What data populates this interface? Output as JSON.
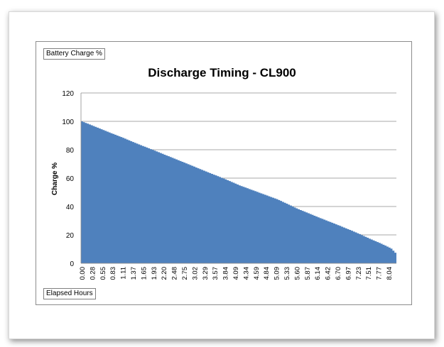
{
  "chart_data": {
    "type": "area",
    "title": "Discharge Timing - CL900",
    "ylabel": "Charge %",
    "y_axis_tag": "Battery Charge %",
    "x_axis_tag": "Elapsed Hours",
    "ylim": [
      0,
      120
    ],
    "y_ticks": [
      0,
      20,
      40,
      60,
      80,
      100,
      120
    ],
    "grid": true,
    "color": "#4f81bd",
    "x_tick_labels": [
      "0.00",
      "0.28",
      "0.55",
      "0.83",
      "1.11",
      "1.37",
      "1.65",
      "1.93",
      "2.20",
      "2.48",
      "2.75",
      "3.02",
      "3.29",
      "3.57",
      "3.84",
      "4.09",
      "4.34",
      "4.59",
      "4.84",
      "5.09",
      "5.33",
      "5.60",
      "5.87",
      "6.14",
      "6.42",
      "6.70",
      "6.97",
      "7.23",
      "7.51",
      "7.77",
      "8.04"
    ],
    "series": [
      {
        "x": [
          0.0,
          0.28,
          0.55,
          0.83,
          1.11,
          1.37,
          1.65,
          1.93,
          2.2,
          2.48,
          2.75,
          3.02,
          3.29,
          3.57,
          3.84,
          4.09,
          4.34,
          4.59,
          4.84,
          5.09,
          5.33,
          5.6,
          5.87,
          6.14,
          6.42,
          6.7,
          6.97,
          7.23,
          7.51,
          7.77,
          8.04,
          8.2
        ],
        "values": [
          100,
          97,
          94,
          91,
          88,
          85,
          82,
          79,
          76,
          73,
          70,
          67,
          64,
          61,
          58,
          55,
          52.5,
          50,
          47.5,
          45,
          42,
          38.5,
          35.5,
          32.5,
          29.5,
          26.5,
          23.5,
          20.5,
          17,
          14,
          10.5,
          6
        ]
      }
    ]
  }
}
